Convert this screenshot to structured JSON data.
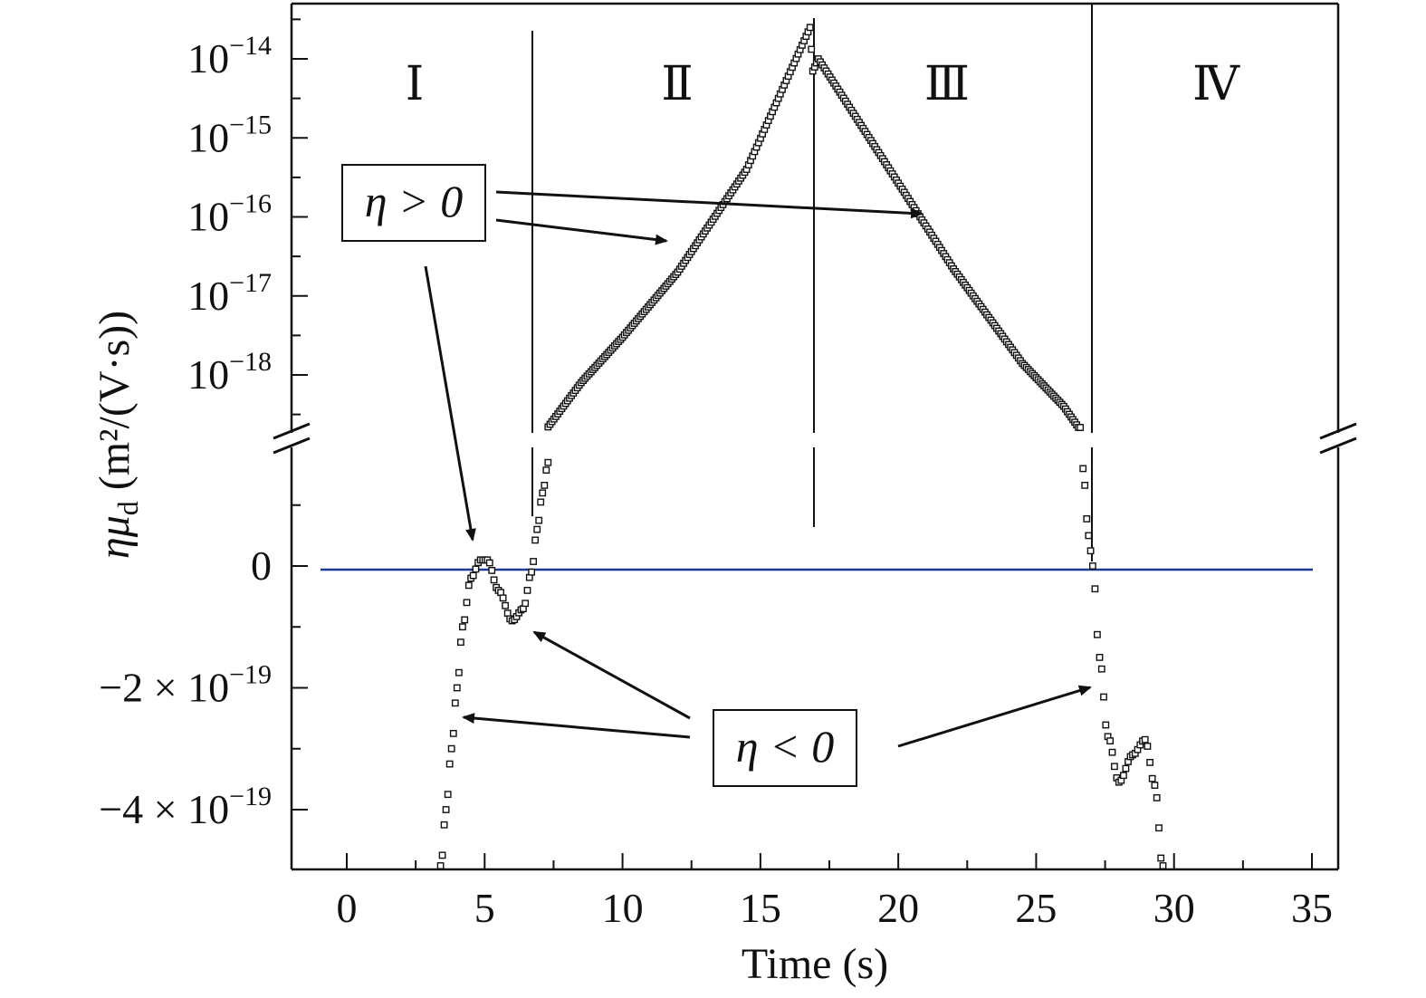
{
  "chart_data": {
    "type": "scatter",
    "xlabel": "Time (s)",
    "ylabel": {
      "prefix": "ημ",
      "subscript": "d",
      "units": " (m²/(V·s))"
    },
    "xlim": [
      -1,
      35
    ],
    "x_ticks": [
      0,
      5,
      10,
      15,
      20,
      25,
      30,
      35
    ],
    "y_axis_broken": true,
    "upper_scale": "log",
    "upper_ylim": [
      1e-19,
      3e-14
    ],
    "upper_y_ticks": [
      {
        "value": 1e-14,
        "label": "10",
        "exp": "−14"
      },
      {
        "value": 1e-15,
        "label": "10",
        "exp": "−15"
      },
      {
        "value": 1e-16,
        "label": "10",
        "exp": "−16"
      },
      {
        "value": 1e-17,
        "label": "10",
        "exp": "−17"
      },
      {
        "value": 1e-18,
        "label": "10",
        "exp": "−18"
      }
    ],
    "lower_scale": "linear",
    "lower_ylim": [
      -5e-19,
      1.5e-19
    ],
    "lower_y_ticks": [
      {
        "value": 0,
        "label": "0",
        "exp": ""
      },
      {
        "value": -2e-19,
        "label": "−2 × 10",
        "exp": "−19"
      },
      {
        "value": -4e-19,
        "label": "−4 × 10",
        "exp": "−19"
      }
    ],
    "regions": [
      {
        "label": "I",
        "from": -1,
        "to": 6.7
      },
      {
        "label": "II",
        "from": 6.7,
        "to": 16.9
      },
      {
        "label": "III",
        "from": 16.9,
        "to": 26.8
      },
      {
        "label": "IV",
        "from": 26.8,
        "to": 35
      }
    ],
    "region_boundaries": [
      6.7,
      16.9,
      26.8
    ],
    "zero_line_color": "#1f3a93",
    "marker": "open-square",
    "series": [
      {
        "lower_points": [
          [
            3.4,
            -5e-19
          ],
          [
            3.6,
            -4e-19
          ],
          [
            3.8,
            -3e-19
          ],
          [
            4.0,
            -2e-19
          ],
          [
            4.2,
            -1e-19
          ],
          [
            4.5,
            -2e-20
          ],
          [
            4.85,
            1e-20
          ],
          [
            5.1,
            1e-20
          ],
          [
            5.5,
            -4e-20
          ],
          [
            6.0,
            -9e-20
          ],
          [
            6.4,
            -7e-20
          ],
          [
            6.7,
            -1e-20
          ],
          [
            6.9,
            6e-20
          ],
          [
            7.1,
            1.2e-19
          ],
          [
            7.3,
            1.7e-19
          ]
        ],
        "upper_points": [
          [
            7.3,
            2.2e-19
          ],
          [
            8.5,
            8e-19
          ],
          [
            10.0,
            3e-18
          ],
          [
            12.0,
            2e-17
          ],
          [
            14.5,
            4e-16
          ],
          [
            16.8,
            2.5e-14
          ],
          [
            16.9,
            7e-15
          ],
          [
            17.1,
            1e-14
          ],
          [
            19.5,
            5e-16
          ],
          [
            22.0,
            2.2e-17
          ],
          [
            24.5,
            1.4e-18
          ],
          [
            26.0,
            4e-19
          ],
          [
            26.6,
            2e-19
          ]
        ],
        "lower_points_2": [
          [
            26.7,
            1.6e-19
          ],
          [
            26.9,
            5e-20
          ],
          [
            27.05,
            0
          ],
          [
            27.3,
            -1.5e-19
          ],
          [
            27.6,
            -2.8e-19
          ],
          [
            28.0,
            -3.55e-19
          ],
          [
            28.5,
            -3.1e-19
          ],
          [
            28.95,
            -2.85e-19
          ],
          [
            29.3,
            -3.6e-19
          ],
          [
            29.6,
            -5e-19
          ]
        ]
      }
    ],
    "annotations": [
      {
        "text": "η > 0"
      },
      {
        "text": "η < 0"
      }
    ],
    "region_labels": [
      "Ⅰ",
      "Ⅱ",
      "Ⅲ",
      "Ⅳ"
    ]
  }
}
